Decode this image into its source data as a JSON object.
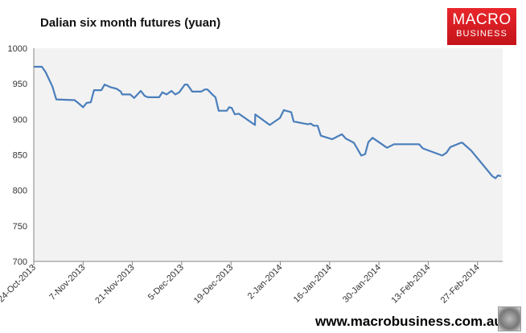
{
  "chart_data": {
    "type": "line",
    "title": "Dalian six month futures (yuan)",
    "xlabel": "",
    "ylabel": "",
    "x_unit": "days since 24-Oct-2013",
    "xlim": [
      0,
      133
    ],
    "ylim": [
      700,
      1000
    ],
    "yticks": [
      700,
      750,
      800,
      850,
      900,
      950,
      1000
    ],
    "xticks": [
      {
        "day": 0,
        "label": "24-Oct-2013"
      },
      {
        "day": 14,
        "label": "7-Nov-2013"
      },
      {
        "day": 28,
        "label": "21-Nov-2013"
      },
      {
        "day": 42,
        "label": "5-Dec-2013"
      },
      {
        "day": 56,
        "label": "19-Dec-2013"
      },
      {
        "day": 70,
        "label": "2-Jan-2014"
      },
      {
        "day": 84,
        "label": "16-Jan-2014"
      },
      {
        "day": 98,
        "label": "30-Jan-2014"
      },
      {
        "day": 112,
        "label": "13-Feb-2014"
      },
      {
        "day": 126,
        "label": "27-Feb-2014"
      }
    ],
    "grid": false,
    "series": [
      {
        "name": "Dalian six month futures",
        "color": "#4a7ebb",
        "x": [
          0,
          2.3,
          3.4,
          5.3,
          6.4,
          11.6,
          12.6,
          14,
          15,
          16.2,
          17.1,
          19.2,
          20.1,
          21.9,
          23.5,
          24.7,
          25.1,
          27.4,
          28.5,
          30.4,
          31.5,
          32.4,
          35.6,
          36.5,
          37.7,
          39.1,
          40.2,
          41.3,
          42.9,
          43.6,
          45,
          47.5,
          48.6,
          49.3,
          50.9,
          51.6,
          52.5,
          54.8,
          55.5,
          56.2,
          57.1,
          58.2,
          62.8,
          62.9,
          67,
          69.9,
          71,
          73.1,
          73.8,
          76.7,
          77.9,
          78.6,
          79.5,
          80.6,
          81.5,
          84.7,
          87.5,
          88.6,
          90.9,
          93,
          94.1,
          95,
          96.2,
          100.3,
          102.3,
          109.4,
          110.5,
          116,
          117.2,
          118.3,
          121.3,
          121.7,
          124.2,
          130.2,
          131.1,
          131.8,
          132.7
        ],
        "values": [
          974,
          974,
          966,
          946,
          928,
          927,
          923,
          917,
          923,
          924,
          941,
          941,
          949,
          945,
          943,
          939,
          935,
          935,
          930,
          940,
          933,
          931,
          931,
          938,
          935,
          940,
          935,
          938,
          949,
          949,
          939,
          939,
          942,
          942,
          934,
          931,
          912,
          912,
          917,
          916,
          907,
          908,
          892,
          907,
          892,
          902,
          913,
          910,
          897,
          894,
          893,
          894,
          891,
          891,
          877,
          872,
          879,
          873,
          867,
          849,
          851,
          868,
          874,
          860,
          865,
          865,
          859,
          849,
          853,
          861,
          867,
          867,
          856,
          820,
          817,
          821,
          820
        ]
      }
    ]
  },
  "logo": {
    "line1": "MACRO",
    "line2": "BUSINESS"
  },
  "watermark": "www.macrobusiness.com.au"
}
